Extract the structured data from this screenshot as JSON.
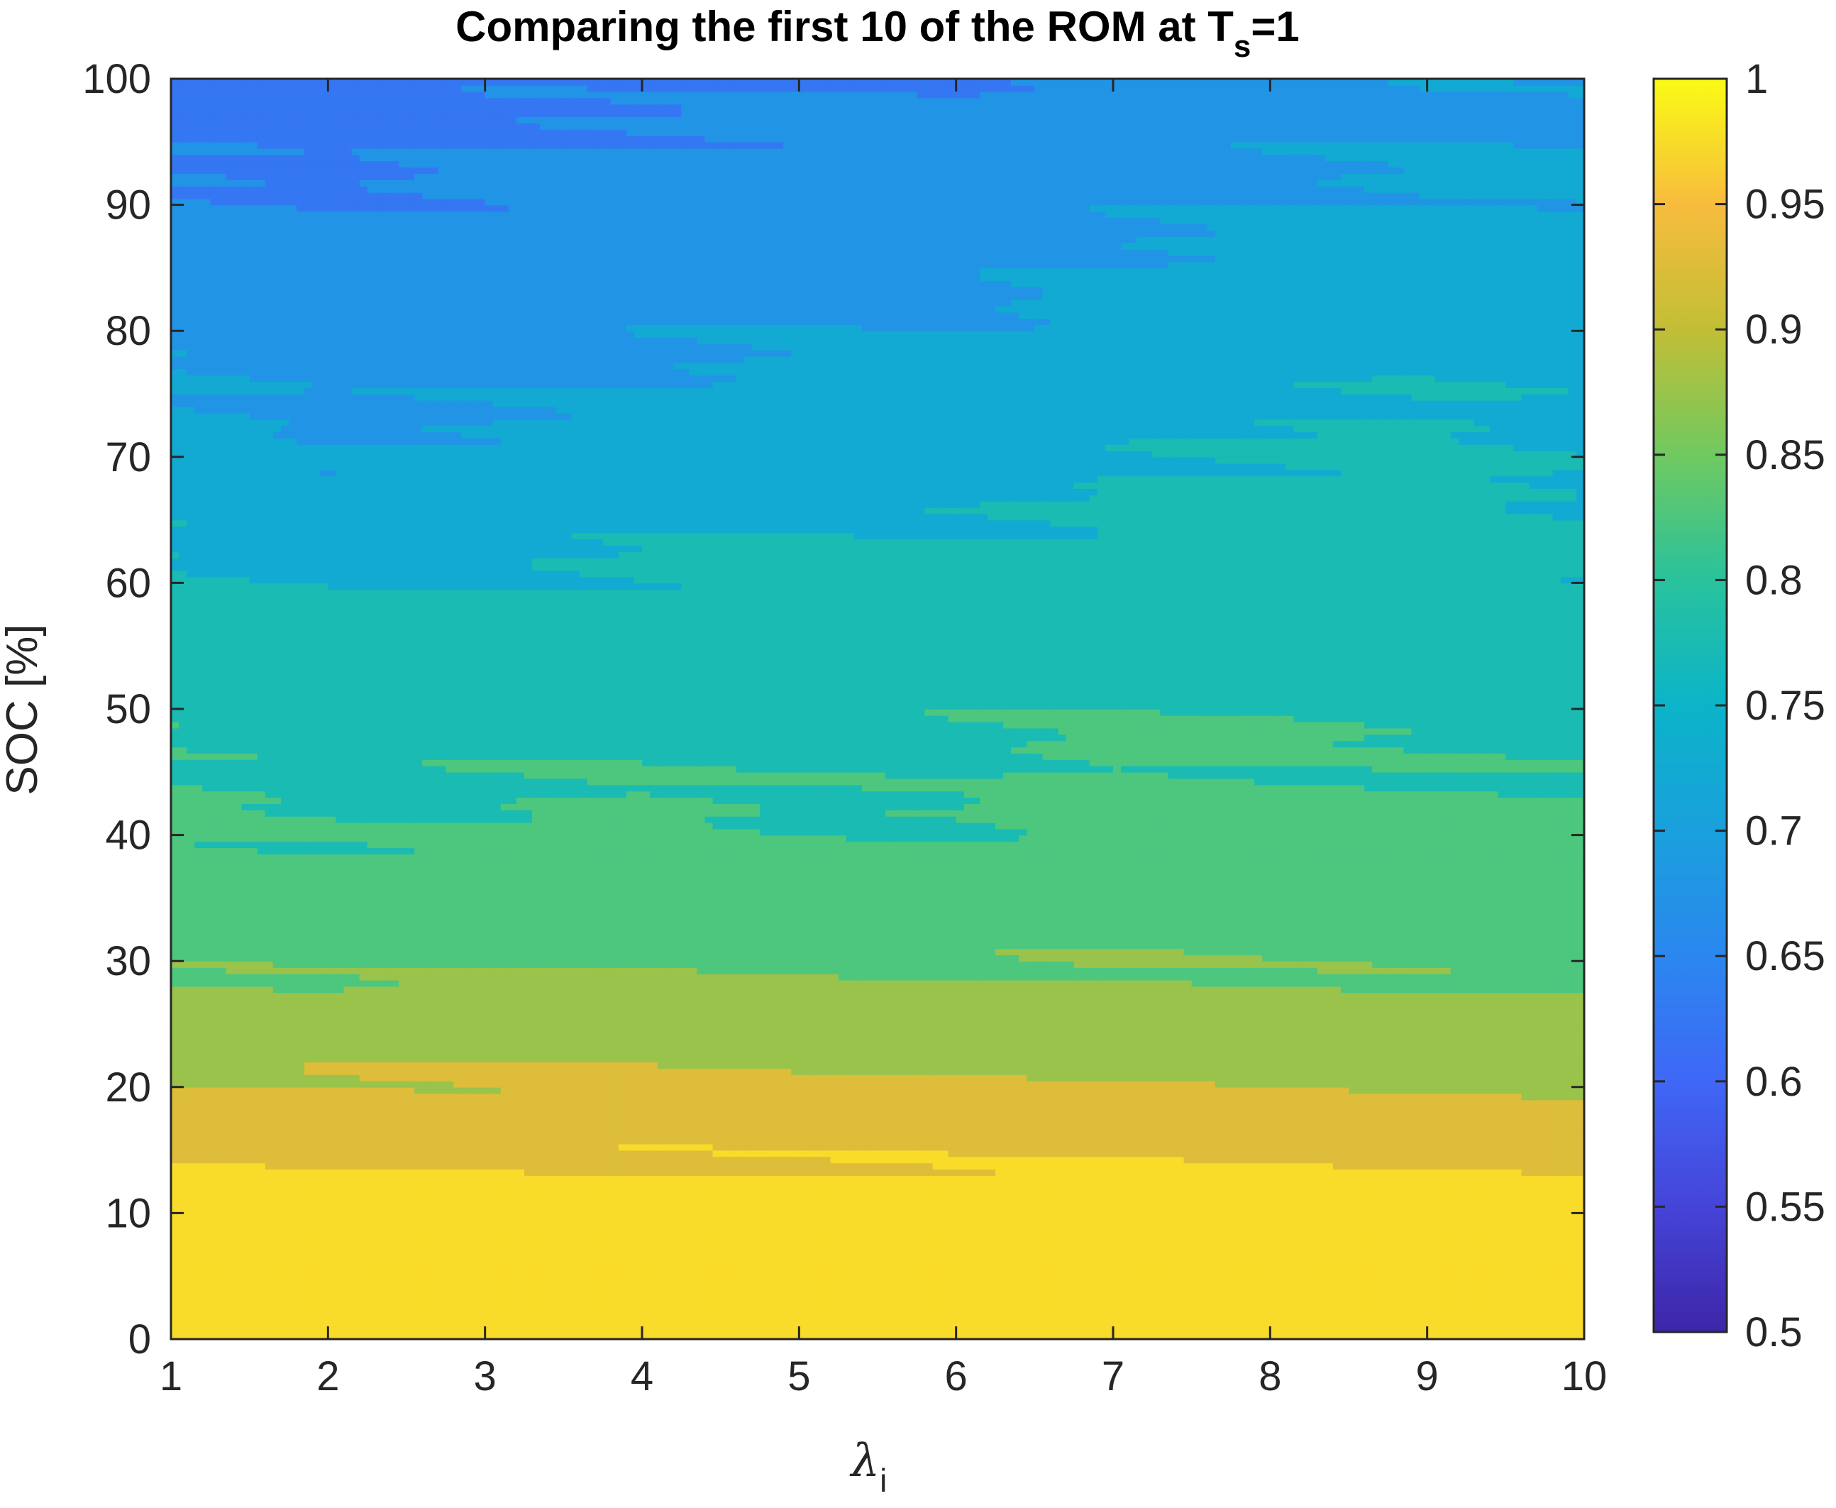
{
  "chart_data": {
    "type": "heatmap",
    "title": {
      "main": "Comparing the first 10 of the ROM at T",
      "subscript": "s",
      "suffix": "=1"
    },
    "xlabel": {
      "symbol": "λ",
      "subscript": "i"
    },
    "ylabel": "SOC [%]",
    "xlim": [
      1,
      10
    ],
    "ylim": [
      0,
      100
    ],
    "xticks": [
      "1",
      "2",
      "3",
      "4",
      "5",
      "6",
      "7",
      "8",
      "9",
      "10"
    ],
    "yticks": [
      "0",
      "10",
      "20",
      "30",
      "40",
      "50",
      "60",
      "70",
      "80",
      "90",
      "100"
    ],
    "colorbar": {
      "range": [
        0.5,
        1
      ],
      "colormap": "parula",
      "ticks": [
        "0.5",
        "0.55",
        "0.6",
        "0.65",
        "0.7",
        "0.75",
        "0.8",
        "0.85",
        "0.9",
        "0.95",
        "1"
      ]
    },
    "x": [
      1,
      2,
      3,
      4,
      5,
      6,
      7,
      8,
      9,
      10
    ],
    "y": [
      0,
      10,
      20,
      30,
      40,
      50,
      60,
      70,
      80,
      90,
      100
    ],
    "z": [
      [
        1,
        0.972,
        0.9,
        0.84,
        0.81,
        0.79,
        0.76,
        0.72,
        0.69,
        0.66,
        0.63
      ],
      [
        1,
        0.972,
        0.91,
        0.835,
        0.8,
        0.78,
        0.745,
        0.7,
        0.68,
        0.65,
        0.62
      ],
      [
        1,
        0.972,
        0.91,
        0.84,
        0.805,
        0.78,
        0.75,
        0.71,
        0.68,
        0.66,
        0.64
      ],
      [
        1,
        0.972,
        0.91,
        0.85,
        0.82,
        0.78,
        0.76,
        0.72,
        0.69,
        0.67,
        0.64
      ],
      [
        1,
        0.972,
        0.905,
        0.845,
        0.8,
        0.78,
        0.765,
        0.73,
        0.7,
        0.67,
        0.65
      ],
      [
        1,
        0.972,
        0.905,
        0.84,
        0.8,
        0.79,
        0.76,
        0.73,
        0.7,
        0.67,
        0.65
      ],
      [
        1,
        0.972,
        0.91,
        0.85,
        0.825,
        0.8,
        0.77,
        0.745,
        0.72,
        0.69,
        0.67
      ],
      [
        1,
        0.972,
        0.905,
        0.84,
        0.81,
        0.8,
        0.77,
        0.755,
        0.73,
        0.7,
        0.68
      ],
      [
        1,
        0.972,
        0.9,
        0.835,
        0.81,
        0.79,
        0.77,
        0.76,
        0.74,
        0.71,
        0.69
      ],
      [
        1,
        0.972,
        0.9,
        0.83,
        0.81,
        0.78,
        0.76,
        0.745,
        0.73,
        0.71,
        0.69
      ]
    ],
    "grid": false,
    "legend": "none"
  }
}
